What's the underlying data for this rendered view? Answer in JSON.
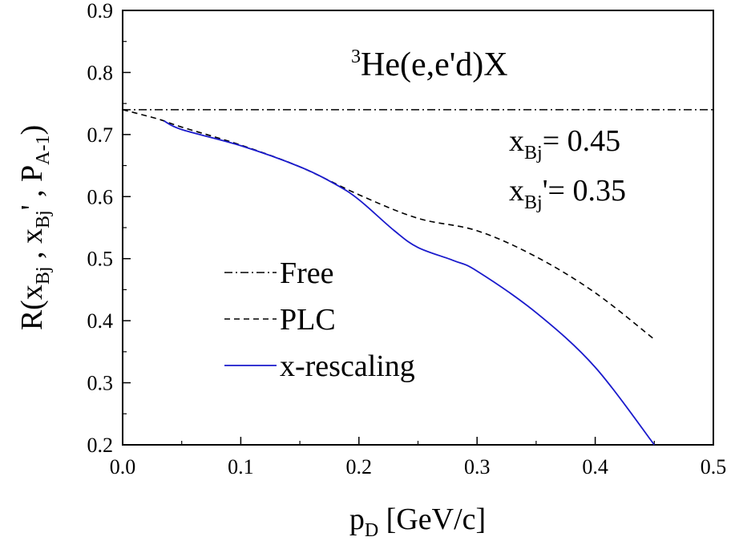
{
  "chart_data": {
    "type": "line",
    "xlabel": {
      "main": "p",
      "sub": "D",
      "rest": " [GeV/c]"
    },
    "ylabel": {
      "r": "R(x",
      "sub1": "Bj",
      "comma1": " , x",
      "sub2": "Bj",
      "prime": "' , P",
      "sub3": "A-1",
      "close": ")"
    },
    "xlim": [
      0.0,
      0.5
    ],
    "ylim": [
      0.2,
      0.9
    ],
    "xticks": [
      0.0,
      0.1,
      0.2,
      0.3,
      0.4,
      0.5
    ],
    "xtick_labels": [
      "0.0",
      "0.1",
      "0.2",
      "0.3",
      "0.4",
      "0.5"
    ],
    "yticks": [
      0.2,
      0.3,
      0.4,
      0.5,
      0.6,
      0.7,
      0.8,
      0.9
    ],
    "ytick_labels": [
      "0.2",
      "0.3",
      "0.4",
      "0.5",
      "0.6",
      "0.7",
      "0.8",
      "0.9"
    ],
    "grid": false,
    "legend_position": "bottom-left",
    "annotations": {
      "reaction": {
        "sup": "3",
        "text": "He(e,e'd)X"
      },
      "xbj": {
        "x": "x",
        "sub": "Bj",
        "rest": "= 0.45"
      },
      "xbjp": {
        "x": "x",
        "sub": "Bj",
        "rest": "'= 0.35"
      }
    },
    "series": [
      {
        "name": "Free",
        "style": "dashdot",
        "color": "#000000",
        "x": [
          0.0,
          0.5
        ],
        "y": [
          0.74,
          0.74
        ]
      },
      {
        "name": "PLC",
        "style": "dashed",
        "color": "#000000",
        "x": [
          0.0,
          0.03,
          0.05,
          0.1,
          0.15,
          0.2,
          0.25,
          0.3,
          0.35,
          0.4,
          0.45
        ],
        "y": [
          0.74,
          0.725,
          0.712,
          0.683,
          0.648,
          0.603,
          0.565,
          0.545,
          0.503,
          0.445,
          0.37
        ]
      },
      {
        "name": "x-rescaling",
        "style": "solid",
        "color": "#1a1acc",
        "x": [
          0.035,
          0.05,
          0.1,
          0.15,
          0.18,
          0.2,
          0.23,
          0.25,
          0.28,
          0.3,
          0.35,
          0.4,
          0.45
        ],
        "y": [
          0.722,
          0.708,
          0.682,
          0.648,
          0.62,
          0.595,
          0.545,
          0.518,
          0.497,
          0.48,
          0.413,
          0.325,
          0.2
        ]
      }
    ]
  }
}
